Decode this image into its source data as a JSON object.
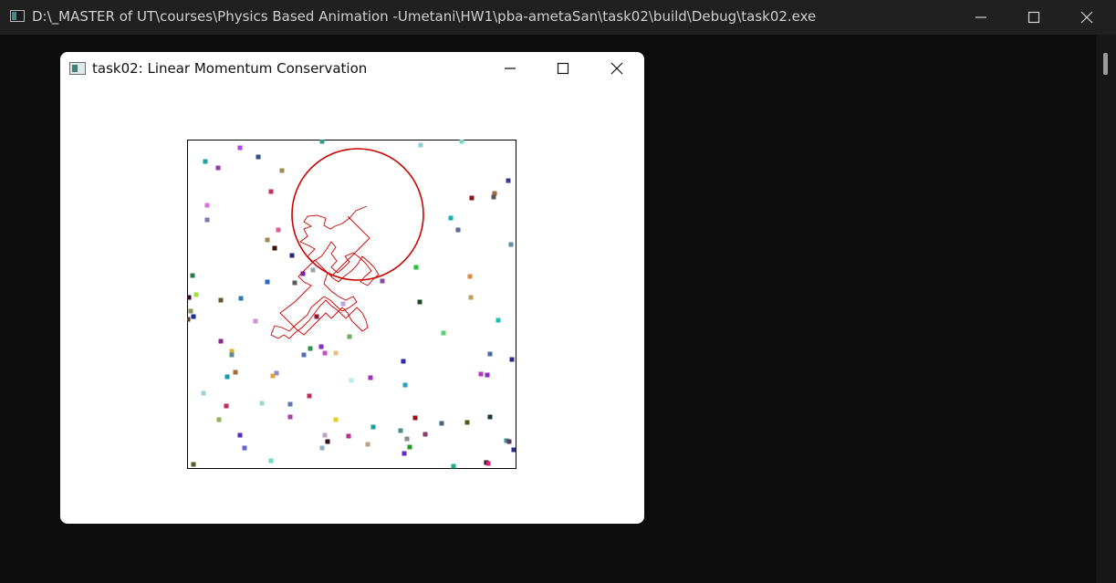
{
  "console": {
    "title": "D:\\_MASTER of UT\\courses\\Physics Based Animation -Umetani\\HW1\\pba-ametaSan\\task02\\build\\Debug\\task02.exe",
    "icon": "console-icon"
  },
  "app": {
    "title": "task02: Linear Momentum Conservation",
    "icon": "app-icon"
  },
  "colors": {
    "console_bg": "#0c0c0c",
    "titlebar_bg": "#202020",
    "trajectory": "#cc0000",
    "circle": "#cc0000"
  }
}
